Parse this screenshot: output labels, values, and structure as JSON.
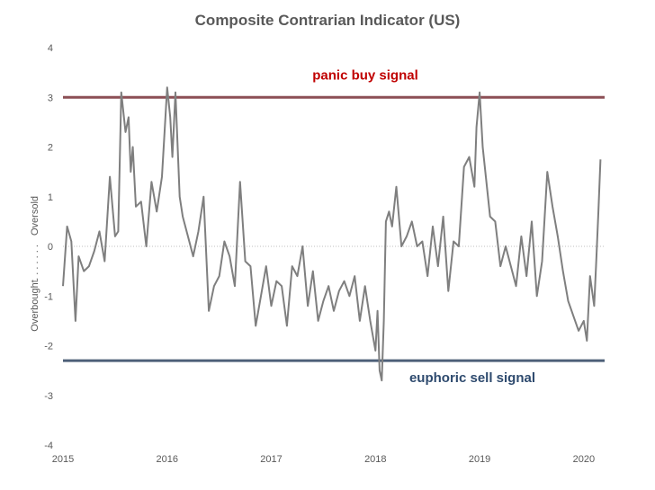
{
  "chart_data": {
    "type": "line",
    "title": "Composite Contrarian Indicator (US)",
    "xlabel": "",
    "ylabel": {
      "upper": "Oversold",
      "separator": ". . . . . . .",
      "lower": "Overbought"
    },
    "xlim": [
      2015.0,
      2020.2
    ],
    "ylim": [
      -4,
      4
    ],
    "x_ticks": [
      "2015",
      "2016",
      "2017",
      "2018",
      "2019",
      "2020"
    ],
    "y_ticks": [
      "4",
      "3",
      "2",
      "1",
      "0",
      "-1",
      "-2",
      "-3",
      "-4"
    ],
    "grid": false,
    "legend": "none",
    "reference_lines": [
      {
        "label": "panic buy signal",
        "value": 3.0,
        "color": "#8c4f55",
        "label_color": "#c00000"
      },
      {
        "label": "euphoric sell signal",
        "value": -2.3,
        "color": "#4d5f78",
        "label_color": "#2e4a6e"
      },
      {
        "value": 0.0,
        "color": "#bfbfbf",
        "style": "dotted"
      }
    ],
    "series": [
      {
        "color": "#7f7f7f",
        "x": [
          2015.0,
          2015.04,
          2015.08,
          2015.12,
          2015.15,
          2015.2,
          2015.25,
          2015.3,
          2015.35,
          2015.4,
          2015.45,
          2015.5,
          2015.53,
          2015.56,
          2015.6,
          2015.63,
          2015.65,
          2015.67,
          2015.7,
          2015.75,
          2015.8,
          2015.85,
          2015.9,
          2015.95,
          2016.0,
          2016.03,
          2016.05,
          2016.08,
          2016.12,
          2016.15,
          2016.2,
          2016.25,
          2016.3,
          2016.35,
          2016.4,
          2016.45,
          2016.5,
          2016.55,
          2016.6,
          2016.65,
          2016.7,
          2016.75,
          2016.8,
          2016.85,
          2016.9,
          2016.95,
          2017.0,
          2017.05,
          2017.1,
          2017.15,
          2017.2,
          2017.25,
          2017.3,
          2017.35,
          2017.4,
          2017.45,
          2017.5,
          2017.55,
          2017.6,
          2017.65,
          2017.7,
          2017.75,
          2017.8,
          2017.85,
          2017.9,
          2017.95,
          2018.0,
          2018.02,
          2018.04,
          2018.06,
          2018.08,
          2018.1,
          2018.13,
          2018.16,
          2018.2,
          2018.25,
          2018.3,
          2018.35,
          2018.4,
          2018.45,
          2018.5,
          2018.55,
          2018.6,
          2018.65,
          2018.7,
          2018.75,
          2018.8,
          2018.85,
          2018.9,
          2018.95,
          2018.97,
          2019.0,
          2019.03,
          2019.06,
          2019.1,
          2019.15,
          2019.2,
          2019.25,
          2019.3,
          2019.35,
          2019.4,
          2019.45,
          2019.5,
          2019.55,
          2019.6,
          2019.65,
          2019.7,
          2019.75,
          2019.8,
          2019.85,
          2019.9,
          2019.95,
          2020.0,
          2020.03,
          2020.06,
          2020.1,
          2020.12,
          2020.14,
          2020.16
        ],
        "y": [
          -0.8,
          0.4,
          0.1,
          -1.5,
          -0.2,
          -0.5,
          -0.4,
          -0.1,
          0.3,
          -0.3,
          1.4,
          0.2,
          0.3,
          3.1,
          2.3,
          2.6,
          1.5,
          2.0,
          0.8,
          0.9,
          0.0,
          1.3,
          0.7,
          1.4,
          3.2,
          2.6,
          1.8,
          3.1,
          1.0,
          0.6,
          0.2,
          -0.2,
          0.3,
          1.0,
          -1.3,
          -0.8,
          -0.6,
          0.1,
          -0.2,
          -0.8,
          1.3,
          -0.3,
          -0.4,
          -1.6,
          -1.0,
          -0.4,
          -1.2,
          -0.7,
          -0.8,
          -1.6,
          -0.4,
          -0.6,
          0.0,
          -1.2,
          -0.5,
          -1.5,
          -1.1,
          -0.8,
          -1.3,
          -0.9,
          -0.7,
          -1.0,
          -0.6,
          -1.5,
          -0.8,
          -1.5,
          -2.1,
          -1.3,
          -2.5,
          -2.7,
          -1.5,
          0.5,
          0.7,
          0.4,
          1.2,
          0.0,
          0.2,
          0.5,
          0.0,
          0.1,
          -0.6,
          0.4,
          -0.4,
          0.6,
          -0.9,
          0.1,
          0.0,
          1.6,
          1.8,
          1.2,
          2.4,
          3.1,
          2.0,
          1.4,
          0.6,
          0.5,
          -0.4,
          0.0,
          -0.4,
          -0.8,
          0.2,
          -0.6,
          0.5,
          -1.0,
          -0.3,
          1.5,
          0.8,
          0.2,
          -0.5,
          -1.1,
          -1.4,
          -1.7,
          -1.5,
          -1.9,
          -0.6,
          -1.2,
          -0.3,
          0.7,
          1.75
        ]
      }
    ]
  }
}
